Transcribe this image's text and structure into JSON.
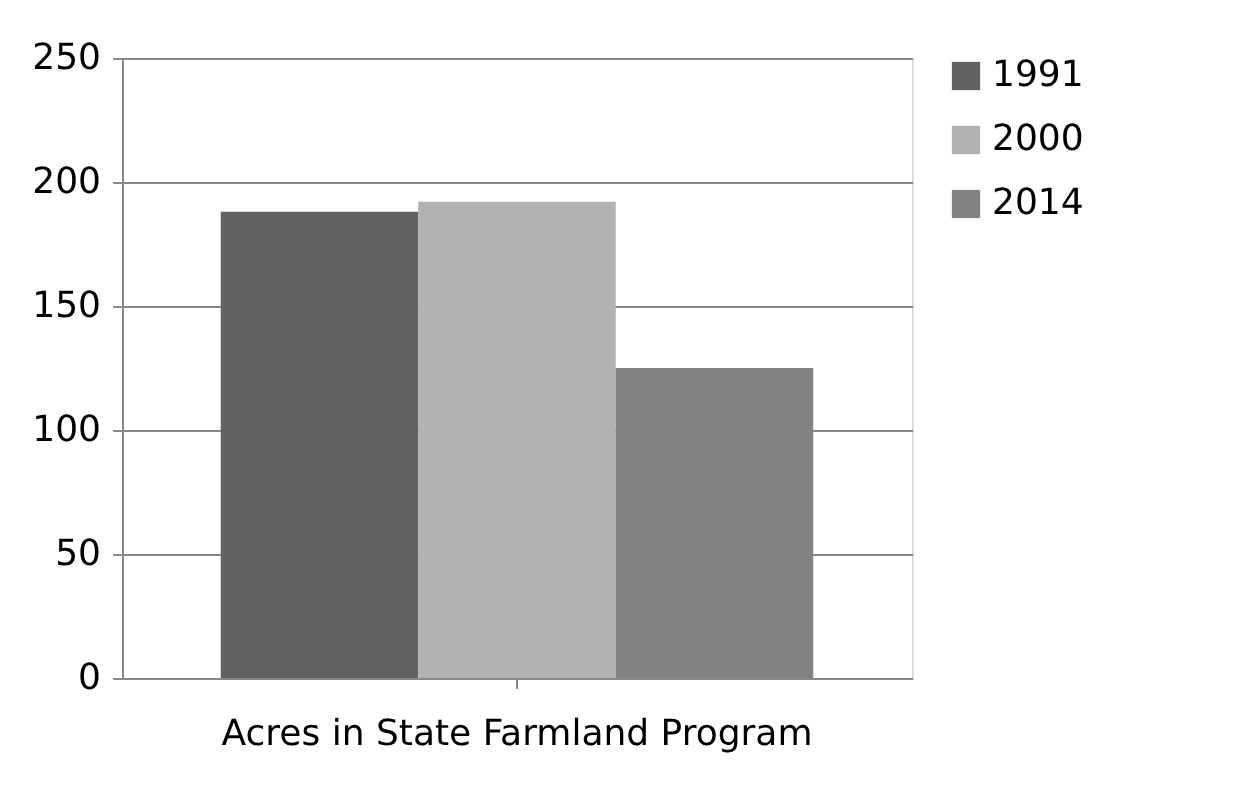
{
  "chart_data": {
    "type": "bar",
    "categories": [
      "Acres in State Farmland Program"
    ],
    "series": [
      {
        "name": "1991",
        "color": "#626262",
        "values": [
          188
        ]
      },
      {
        "name": "2000",
        "color": "#b2b2b2",
        "values": [
          192
        ]
      },
      {
        "name": "2014",
        "color": "#838383",
        "values": [
          125
        ]
      }
    ],
    "ylim": [
      0,
      250
    ],
    "yticks": [
      0,
      50,
      100,
      150,
      200,
      250
    ],
    "grid": "y",
    "legend": "right"
  }
}
